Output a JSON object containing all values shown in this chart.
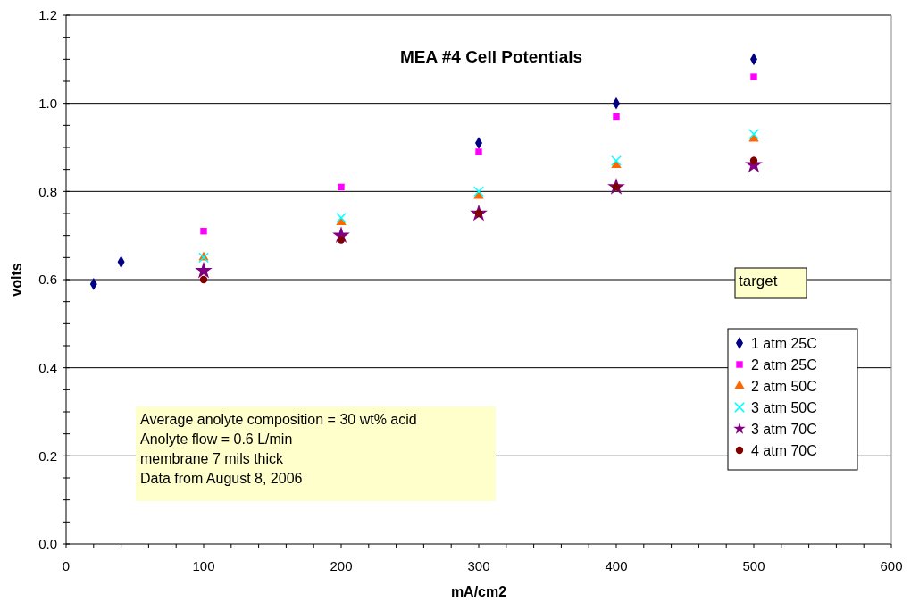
{
  "chart_data": {
    "type": "scatter",
    "title": "MEA #4 Cell Potentials",
    "xlabel": "mA/cm2",
    "ylabel": "volts",
    "x": [
      20,
      40,
      100,
      200,
      300,
      400,
      500
    ],
    "series": [
      {
        "name": "1 atm 25C",
        "color": "#000080",
        "marker": "diamond",
        "values": [
          0.59,
          0.64,
          null,
          null,
          0.91,
          1.0,
          1.1
        ]
      },
      {
        "name": "2 atm 25C",
        "color": "#ff00ff",
        "marker": "square",
        "values": [
          null,
          null,
          0.71,
          0.81,
          0.89,
          0.97,
          1.06
        ]
      },
      {
        "name": "2 atm 50C",
        "color": "#ff6600",
        "marker": "triangle",
        "values": [
          null,
          null,
          0.65,
          0.73,
          0.79,
          0.86,
          0.92
        ]
      },
      {
        "name": "3 atm 50C",
        "color": "#00ffff",
        "marker": "cross",
        "values": [
          null,
          null,
          0.65,
          0.74,
          0.8,
          0.87,
          0.93
        ]
      },
      {
        "name": "3 atm 70C",
        "color": "#800080",
        "marker": "star",
        "values": [
          null,
          null,
          0.62,
          0.7,
          0.75,
          0.81,
          0.86
        ]
      },
      {
        "name": "4 atm 70C",
        "color": "#800000",
        "marker": "circle",
        "values": [
          null,
          null,
          0.6,
          0.69,
          0.75,
          0.81,
          0.87
        ]
      }
    ],
    "xlim": [
      0,
      600
    ],
    "xticks": [
      0,
      100,
      200,
      300,
      400,
      500,
      600
    ],
    "ylim": [
      0,
      1.2
    ],
    "yticks": [
      {
        "value": 0,
        "label": "0.0"
      },
      {
        "value": 0.2,
        "label": "0.2"
      },
      {
        "value": 0.4,
        "label": "0.4"
      },
      {
        "value": 0.6,
        "label": "0.6"
      },
      {
        "value": 0.8,
        "label": "0.8"
      },
      {
        "value": 1.0,
        "label": "1.0"
      },
      {
        "value": 1.2,
        "label": "1.2"
      }
    ],
    "grid": "y",
    "legend": "bottom right",
    "annotations": [
      "target",
      "Average anolyte composition = 30 wt% acid\nAnolyte flow = 0.6 L/min\nmembrane 7 mils thick\nData from August 8, 2006"
    ]
  }
}
